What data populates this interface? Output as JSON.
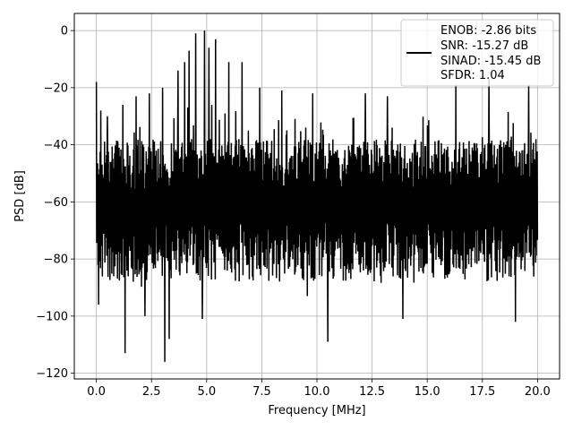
{
  "chart_data": {
    "type": "line",
    "title": "",
    "xlabel": "Frequency [MHz]",
    "ylabel": "PSD [dB]",
    "xlim": [
      -1.0,
      21.0
    ],
    "ylim": [
      -122,
      6
    ],
    "xticks": [
      0.0,
      2.5,
      5.0,
      7.5,
      10.0,
      12.5,
      15.0,
      17.5,
      20.0
    ],
    "xtick_labels": [
      "0.0",
      "2.5",
      "5.0",
      "7.5",
      "10.0",
      "12.5",
      "15.0",
      "17.5",
      "20.0"
    ],
    "yticks": [
      0,
      -20,
      -40,
      -60,
      -80,
      -100,
      -120
    ],
    "ytick_labels": [
      "0",
      "−20",
      "−40",
      "−60",
      "−80",
      "−100",
      "−120"
    ],
    "grid": true,
    "legend": {
      "placement": "top-right",
      "lines": [
        "ENOB: -2.86 bits",
        "SNR: -15.27 dB",
        "SINAD: -15.45 dB",
        "SFDR: 1.04"
      ]
    },
    "series": [
      {
        "color": "#000000",
        "x_start": 0.0,
        "x_end": 20.0,
        "points": 1400,
        "floor_range_db": [
          -88,
          -38
        ],
        "notable_peaks": [
          {
            "x": 0.0,
            "y": -18
          },
          {
            "x": 0.2,
            "y": -28
          },
          {
            "x": 0.5,
            "y": -30
          },
          {
            "x": 1.2,
            "y": -26
          },
          {
            "x": 1.8,
            "y": -23
          },
          {
            "x": 2.4,
            "y": -22
          },
          {
            "x": 3.0,
            "y": -20
          },
          {
            "x": 3.7,
            "y": -14
          },
          {
            "x": 4.0,
            "y": -11
          },
          {
            "x": 4.2,
            "y": -7
          },
          {
            "x": 4.5,
            "y": -1
          },
          {
            "x": 4.9,
            "y": 0
          },
          {
            "x": 5.1,
            "y": -6
          },
          {
            "x": 5.4,
            "y": -3
          },
          {
            "x": 6.0,
            "y": -11
          },
          {
            "x": 6.6,
            "y": -11
          },
          {
            "x": 7.4,
            "y": -20
          },
          {
            "x": 8.4,
            "y": -21
          },
          {
            "x": 9.8,
            "y": -22
          },
          {
            "x": 12.2,
            "y": -22
          },
          {
            "x": 13.2,
            "y": -23
          },
          {
            "x": 16.3,
            "y": -19
          },
          {
            "x": 17.8,
            "y": -17
          },
          {
            "x": 19.6,
            "y": -19
          }
        ],
        "notable_dips": [
          {
            "x": 0.1,
            "y": -96
          },
          {
            "x": 1.3,
            "y": -113
          },
          {
            "x": 2.2,
            "y": -100
          },
          {
            "x": 3.1,
            "y": -116
          },
          {
            "x": 3.3,
            "y": -108
          },
          {
            "x": 4.8,
            "y": -101
          },
          {
            "x": 10.5,
            "y": -109
          },
          {
            "x": 13.9,
            "y": -101
          },
          {
            "x": 19.0,
            "y": -102
          }
        ]
      }
    ]
  }
}
